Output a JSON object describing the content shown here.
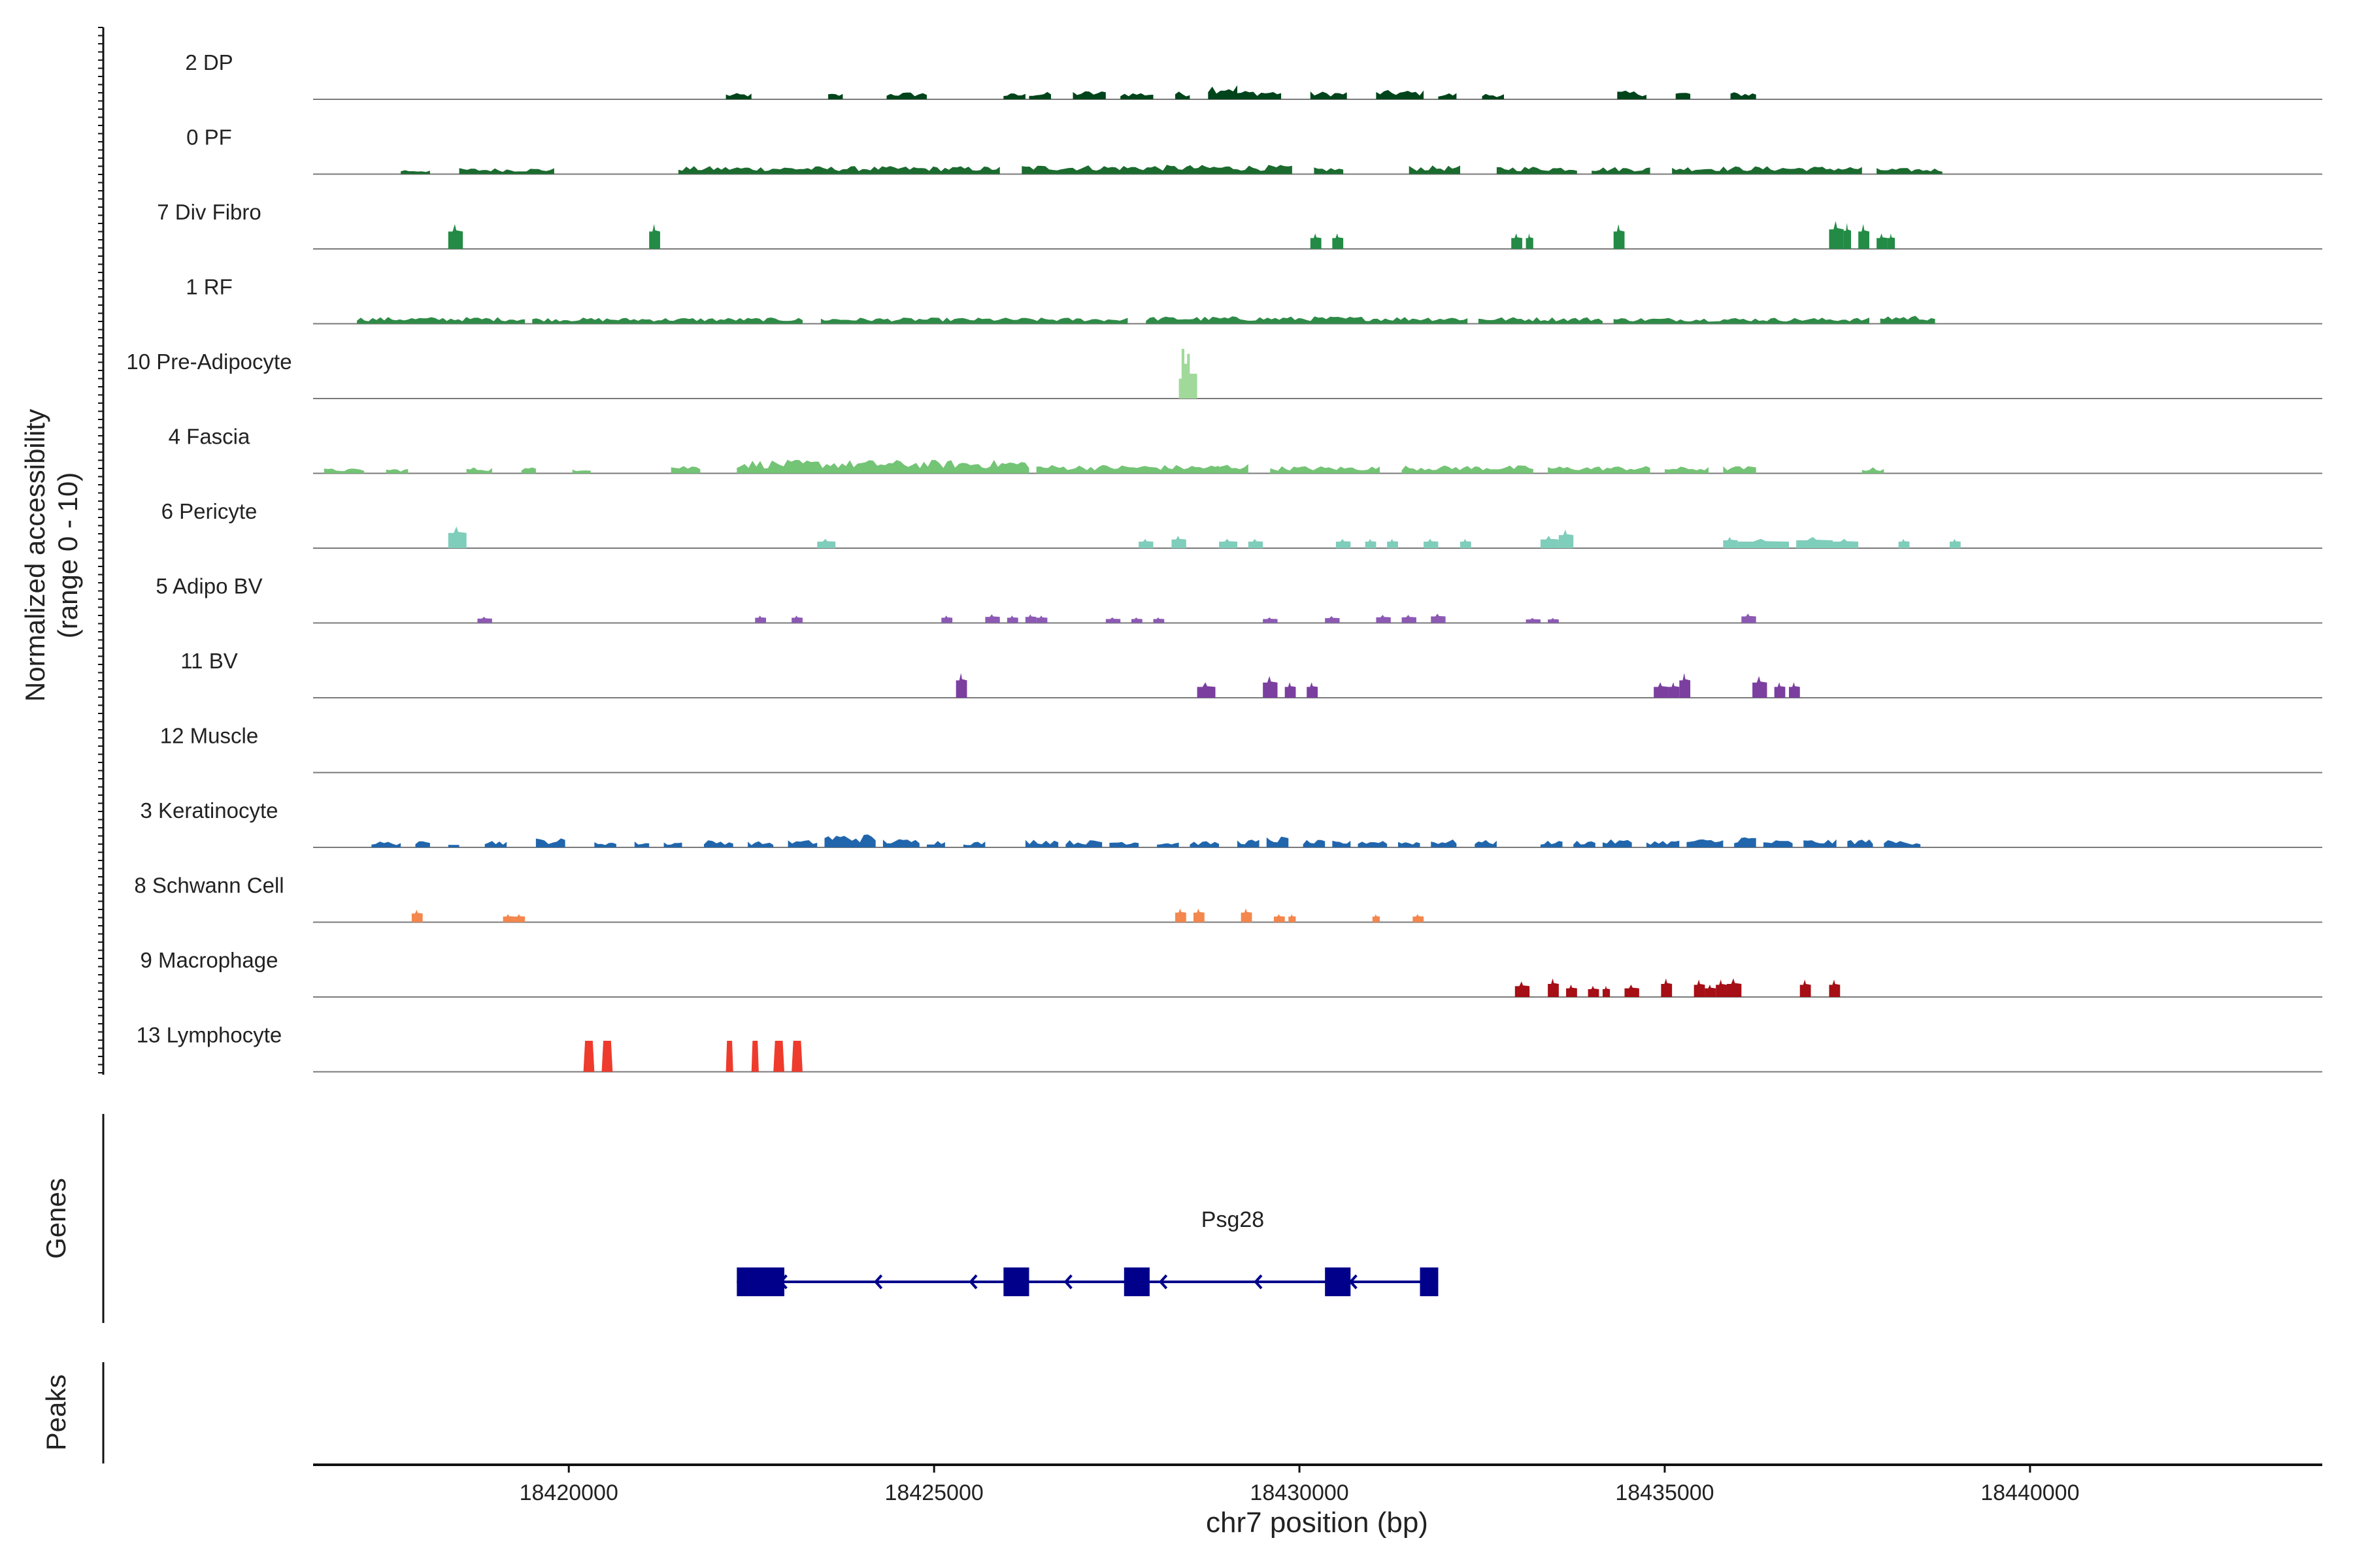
{
  "chart_data": {
    "type": "area",
    "title": "",
    "ylabel_line1": "Normalized accessibility",
    "ylabel_line2": "(range 0 - 10)",
    "xlabel": "chr7 position (bp)",
    "xlim": [
      18416500,
      18444000
    ],
    "xticks": [
      "18420000",
      "18425000",
      "18430000",
      "18435000",
      "18440000"
    ],
    "ylim": [
      0,
      10
    ],
    "tracks": [
      {
        "name": "2 DP",
        "color": "#00441b",
        "pattern": "dense",
        "segments": [
          [
            18422150,
            18422500
          ],
          [
            18423550,
            18423750
          ],
          [
            18424350,
            18424900
          ],
          [
            18425950,
            18426250
          ],
          [
            18426300,
            18426600
          ],
          [
            18426900,
            18427350
          ],
          [
            18427550,
            18428000
          ],
          [
            18428300,
            18428500
          ],
          [
            18428750,
            18429150
          ],
          [
            18429150,
            18429750
          ],
          [
            18430150,
            18430650
          ],
          [
            18431050,
            18431700
          ],
          [
            18431900,
            18432150
          ],
          [
            18432500,
            18432800
          ],
          [
            18434350,
            18434750
          ],
          [
            18435150,
            18435350
          ],
          [
            18435900,
            18436250
          ]
        ],
        "heights": [
          1,
          1,
          1.2,
          1,
          1.2,
          1.4,
          1.2,
          1.3,
          2.6,
          1.5,
          1.3,
          1.5,
          1.1,
          1,
          1.4,
          1.3,
          1.2
        ]
      },
      {
        "name": "0 PF",
        "color": "#1b6b2f",
        "pattern": "dense",
        "segments": [
          [
            18417700,
            18418100
          ],
          [
            18418500,
            18419800
          ],
          [
            18421500,
            18425900
          ],
          [
            18426200,
            18429900
          ],
          [
            18430200,
            18430600
          ],
          [
            18431500,
            18432200
          ],
          [
            18432700,
            18433800
          ],
          [
            18434000,
            18434800
          ],
          [
            18435100,
            18437700
          ],
          [
            18437900,
            18438800
          ]
        ],
        "heights": [
          0.8,
          1,
          1.3,
          1.5,
          1.1,
          1.4,
          1.3,
          1.2,
          1.3,
          1
        ]
      },
      {
        "name": "7 Div Fibro",
        "color": "#238b45",
        "pattern": "block",
        "segments": [
          [
            18418350,
            18418550
          ],
          [
            18421100,
            18421250
          ],
          [
            18430150,
            18430300
          ],
          [
            18430450,
            18430600
          ],
          [
            18432900,
            18433050
          ],
          [
            18433100,
            18433200
          ],
          [
            18434300,
            18434450
          ],
          [
            18437250,
            18437450
          ],
          [
            18437450,
            18437550
          ],
          [
            18437650,
            18437800
          ],
          [
            18437900,
            18438050
          ],
          [
            18438050,
            18438150
          ]
        ],
        "heights": [
          4,
          4,
          2.5,
          2.5,
          2.5,
          2.5,
          4,
          4.5,
          4.2,
          4,
          2.5,
          2.5
        ]
      },
      {
        "name": "1 RF",
        "color": "#2e8b47",
        "pattern": "dense",
        "segments": [
          [
            18417100,
            18419400
          ],
          [
            18419500,
            18423200
          ],
          [
            18423450,
            18427650
          ],
          [
            18427900,
            18432300
          ],
          [
            18432450,
            18434150
          ],
          [
            18434300,
            18437800
          ],
          [
            18437950,
            18438700
          ]
        ],
        "heights": [
          1.1,
          1,
          1,
          1.2,
          1.1,
          1,
          1.4
        ]
      },
      {
        "name": "10 Pre-Adipocyte",
        "color": "#a1d99b",
        "pattern": "spike",
        "segments": [
          [
            18428350,
            18428600
          ]
        ],
        "heights": [
          8
        ]
      },
      {
        "name": "4 Fascia",
        "color": "#74c476",
        "pattern": "dense",
        "segments": [
          [
            18416650,
            18417200
          ],
          [
            18417500,
            18417800
          ],
          [
            18418600,
            18418950
          ],
          [
            18419350,
            18419550
          ],
          [
            18420050,
            18420300
          ],
          [
            18421400,
            18421800
          ],
          [
            18422300,
            18426300
          ],
          [
            18426400,
            18428900
          ],
          [
            18428900,
            18429300
          ],
          [
            18429600,
            18431100
          ],
          [
            18431400,
            18433200
          ],
          [
            18433400,
            18434800
          ],
          [
            18435000,
            18435600
          ],
          [
            18435800,
            18436250
          ],
          [
            18437700,
            18438000
          ]
        ],
        "heights": [
          0.8,
          0.8,
          1,
          1,
          1,
          1.4,
          2.2,
          1.4,
          1.6,
          1.2,
          1.3,
          1.2,
          1.1,
          1.2,
          1
        ]
      },
      {
        "name": "6 Pericyte",
        "color": "#7fcdbb",
        "pattern": "block",
        "segments": [
          [
            18418350,
            18418600
          ],
          [
            18423400,
            18423650
          ],
          [
            18427800,
            18428000
          ],
          [
            18428250,
            18428450
          ],
          [
            18428900,
            18429150
          ],
          [
            18429300,
            18429500
          ],
          [
            18430500,
            18430700
          ],
          [
            18430900,
            18431050
          ],
          [
            18431200,
            18431350
          ],
          [
            18431700,
            18431900
          ],
          [
            18432200,
            18432350
          ],
          [
            18433300,
            18433550
          ],
          [
            18433550,
            18433750
          ],
          [
            18435800,
            18436000
          ],
          [
            18436000,
            18436700
          ],
          [
            18436800,
            18437300
          ],
          [
            18437300,
            18437650
          ],
          [
            18438200,
            18438350
          ],
          [
            18438900,
            18439050
          ]
        ],
        "heights": [
          3.5,
          1.5,
          1.5,
          2,
          1.5,
          1.5,
          1.5,
          1.5,
          1.5,
          1.5,
          1.5,
          2,
          3,
          1.8,
          1.5,
          1.8,
          1.5,
          1.5,
          1.5
        ]
      },
      {
        "name": "5 Adipo BV",
        "color": "#8c5ab3",
        "pattern": "block",
        "segments": [
          [
            18418750,
            18418950
          ],
          [
            18422550,
            18422700
          ],
          [
            18423050,
            18423200
          ],
          [
            18425100,
            18425250
          ],
          [
            18425700,
            18425900
          ],
          [
            18426000,
            18426150
          ],
          [
            18426250,
            18426400
          ],
          [
            18426400,
            18426550
          ],
          [
            18427350,
            18427550
          ],
          [
            18427700,
            18427850
          ],
          [
            18428000,
            18428150
          ],
          [
            18429500,
            18429700
          ],
          [
            18430350,
            18430550
          ],
          [
            18431050,
            18431250
          ],
          [
            18431400,
            18431600
          ],
          [
            18431800,
            18432000
          ],
          [
            18433100,
            18433300
          ],
          [
            18433400,
            18433550
          ],
          [
            18436050,
            18436250
          ]
        ],
        "heights": [
          1,
          1.2,
          1.2,
          1.2,
          1.4,
          1.2,
          1.4,
          1.2,
          0.9,
          0.9,
          0.9,
          0.9,
          1.1,
          1.3,
          1.3,
          1.5,
          0.8,
          0.8,
          1.5
        ]
      },
      {
        "name": "11 BV",
        "color": "#7b3fa0",
        "pattern": "block",
        "segments": [
          [
            18425300,
            18425450
          ],
          [
            18428600,
            18428850
          ],
          [
            18429500,
            18429700
          ],
          [
            18429800,
            18429950
          ],
          [
            18430100,
            18430250
          ],
          [
            18434850,
            18435050
          ],
          [
            18435050,
            18435200
          ],
          [
            18435200,
            18435350
          ],
          [
            18436200,
            18436400
          ],
          [
            18436500,
            18436650
          ],
          [
            18436700,
            18436850
          ]
        ],
        "heights": [
          4,
          2.5,
          3.5,
          2.5,
          2.5,
          2.5,
          2.5,
          4,
          3.5,
          2.5,
          2.5
        ]
      },
      {
        "name": "12 Muscle",
        "color": "#6a3d9a",
        "pattern": "none",
        "segments": [],
        "heights": []
      },
      {
        "name": "3 Keratinocyte",
        "color": "#2166ac",
        "pattern": "dense",
        "segments": [
          [
            18417300,
            18417700
          ],
          [
            18417900,
            18418100
          ],
          [
            18418350,
            18418500
          ],
          [
            18418850,
            18419150
          ],
          [
            18419550,
            18419950
          ],
          [
            18420350,
            18420650
          ],
          [
            18420900,
            18421100
          ],
          [
            18421300,
            18421550
          ],
          [
            18421850,
            18422250
          ],
          [
            18422450,
            18422800
          ],
          [
            18423000,
            18423400
          ],
          [
            18423500,
            18424200
          ],
          [
            18424300,
            18424800
          ],
          [
            18424900,
            18425150
          ],
          [
            18425400,
            18425700
          ],
          [
            18426250,
            18426700
          ],
          [
            18426800,
            18427300
          ],
          [
            18427400,
            18427800
          ],
          [
            18428050,
            18428350
          ],
          [
            18428500,
            18428900
          ],
          [
            18429150,
            18429450
          ],
          [
            18429550,
            18429850
          ],
          [
            18430050,
            18430350
          ],
          [
            18430450,
            18430700
          ],
          [
            18430800,
            18431200
          ],
          [
            18431350,
            18431650
          ],
          [
            18431800,
            18432150
          ],
          [
            18432400,
            18432700
          ],
          [
            18433300,
            18433600
          ],
          [
            18433750,
            18434050
          ],
          [
            18434150,
            18434550
          ],
          [
            18434750,
            18435200
          ],
          [
            18435300,
            18435800
          ],
          [
            18435950,
            18436250
          ],
          [
            18436350,
            18436750
          ],
          [
            18436900,
            18437350
          ],
          [
            18437500,
            18437850
          ],
          [
            18438000,
            18438500
          ]
        ],
        "heights": [
          1,
          1,
          1,
          1.2,
          1.5,
          1,
          1,
          1,
          1.2,
          1,
          1.2,
          2.2,
          1.4,
          1.2,
          1,
          1.4,
          1.2,
          1.2,
          1,
          1,
          1.3,
          1.8,
          1.2,
          1.1,
          1.3,
          1.1,
          1.3,
          1.2,
          1.1,
          1.2,
          1.3,
          1.2,
          1.4,
          1.9,
          1.2,
          1.3,
          1.4,
          1.2
        ]
      },
      {
        "name": "8 Schwann Cell",
        "color": "#f4874e",
        "pattern": "block",
        "segments": [
          [
            18417850,
            18418000
          ],
          [
            18419100,
            18419250
          ],
          [
            18419250,
            18419400
          ],
          [
            18428300,
            18428450
          ],
          [
            18428550,
            18428700
          ],
          [
            18429200,
            18429350
          ],
          [
            18429650,
            18429800
          ],
          [
            18429850,
            18429950
          ],
          [
            18431000,
            18431100
          ],
          [
            18431550,
            18431700
          ]
        ],
        "heights": [
          2,
          1.3,
          1.3,
          2.2,
          2.2,
          2.2,
          1.3,
          1.3,
          1.3,
          1.3
        ]
      },
      {
        "name": "9 Macrophage",
        "color": "#a50f15",
        "pattern": "block",
        "segments": [
          [
            18432950,
            18433150
          ],
          [
            18433400,
            18433550
          ],
          [
            18433650,
            18433800
          ],
          [
            18433950,
            18434100
          ],
          [
            18434150,
            18434250
          ],
          [
            18434450,
            18434650
          ],
          [
            18434950,
            18435100
          ],
          [
            18435400,
            18435550
          ],
          [
            18435550,
            18435700
          ],
          [
            18435700,
            18435850
          ],
          [
            18435850,
            18436050
          ],
          [
            18436850,
            18437000
          ],
          [
            18437250,
            18437400
          ]
        ],
        "heights": [
          2.5,
          3,
          2,
          1.8,
          1.8,
          2,
          3,
          2.8,
          2,
          2.8,
          3,
          2.8,
          2.8
        ]
      },
      {
        "name": "13 Lymphocyte",
        "color": "#ef3b2c",
        "pattern": "tall",
        "segments": [
          [
            18420200,
            18420350
          ],
          [
            18420450,
            18420600
          ],
          [
            18422150,
            18422250
          ],
          [
            18422500,
            18422600
          ],
          [
            18422800,
            18422950
          ],
          [
            18423050,
            18423200
          ]
        ],
        "heights": [
          5,
          5,
          5,
          5,
          5,
          5
        ]
      }
    ],
    "gene": {
      "name": "Psg28",
      "strand": "-",
      "start": 18422300,
      "end": 18431900,
      "exons": [
        [
          18422300,
          18422950
        ],
        [
          18425950,
          18426300
        ],
        [
          18427600,
          18427950
        ],
        [
          18430350,
          18430700
        ],
        [
          18431650,
          18431900
        ]
      ]
    },
    "panels": {
      "genes_label": "Genes",
      "peaks_label": "Peaks"
    }
  }
}
